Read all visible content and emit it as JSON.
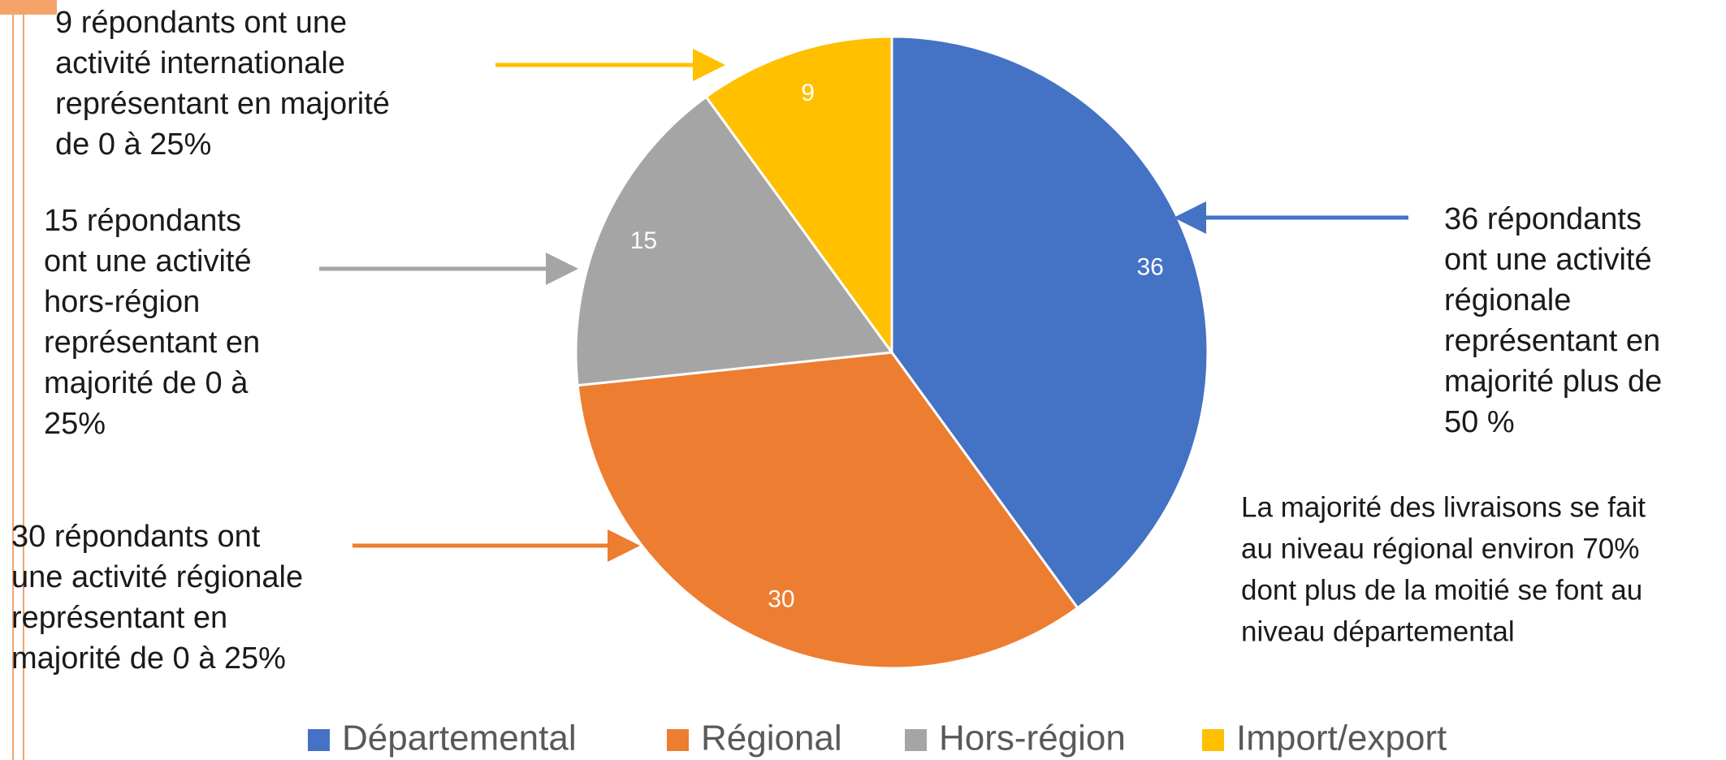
{
  "chart_data": {
    "type": "pie",
    "categories": [
      "Départemental",
      "Régional",
      "Hors-région",
      "Import/export"
    ],
    "values": [
      36,
      30,
      15,
      9
    ],
    "colors": [
      "#4472c4",
      "#ed7d31",
      "#a5a5a5",
      "#ffc000"
    ],
    "annotations": [
      {
        "lines": [
          "36 répondants",
          "ont une activité",
          "régionale",
          "représentant en",
          "majorité plus de",
          "50 %"
        ]
      },
      {
        "lines": [
          "30 répondants ont",
          "une activité régionale",
          "représentant en",
          "majorité de 0 à 25%"
        ]
      },
      {
        "lines": [
          "15 répondants",
          "ont une activité",
          "hors-région",
          "représentant en",
          "majorité de 0 à",
          "25%"
        ]
      },
      {
        "lines": [
          "9 répondants ont une",
          "activité internationale",
          "représentant en majorité",
          "de 0 à 25%"
        ]
      }
    ],
    "note": [
      "La majorité des livraisons se fait",
      "au niveau régional environ 70%",
      "dont plus de la moitié se font au",
      "niveau départemental"
    ]
  }
}
